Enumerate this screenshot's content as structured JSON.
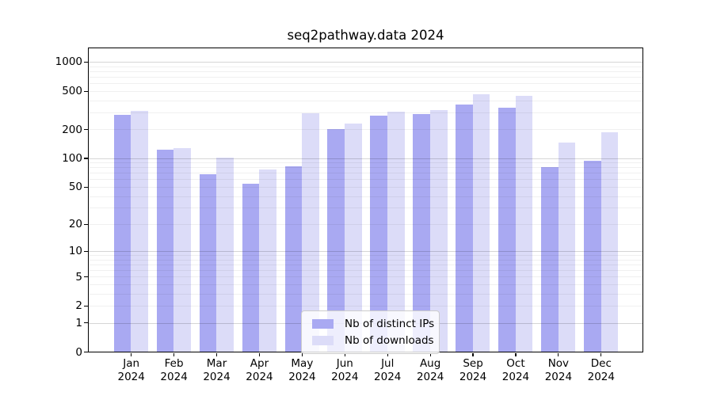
{
  "title": "seq2pathway.data 2024",
  "chart_data": {
    "type": "bar",
    "title": "seq2pathway.data 2024",
    "categories": [
      "Jan 2024",
      "Feb 2024",
      "Mar 2024",
      "Apr 2024",
      "May 2024",
      "Jun 2024",
      "Jul 2024",
      "Aug 2024",
      "Sep 2024",
      "Oct 2024",
      "Nov 2024",
      "Dec 2024"
    ],
    "series": [
      {
        "name": "Nb of distinct IPs",
        "color": "#a9a9f2",
        "values": [
          285,
          122,
          68,
          54,
          83,
          201,
          277,
          287,
          365,
          333,
          81,
          94
        ]
      },
      {
        "name": "Nb of downloads",
        "color": "#dcdcf8",
        "values": [
          312,
          128,
          102,
          76,
          293,
          229,
          306,
          319,
          460,
          444,
          146,
          186
        ]
      }
    ],
    "yscale": "log1p",
    "y_ticks": [
      1000,
      500,
      200,
      100,
      50,
      20,
      10,
      5,
      2,
      1,
      0
    ],
    "ylim": [
      0,
      1380
    ],
    "grid": "on",
    "legend_position": "inside lower center"
  },
  "colors": {
    "bar_distinct_ips": "#a9a9f2",
    "bar_downloads": "#dcdcf8",
    "grid_major": "rgba(0,0,0,0.16)",
    "grid_minor": "rgba(0,0,0,0.06)"
  }
}
